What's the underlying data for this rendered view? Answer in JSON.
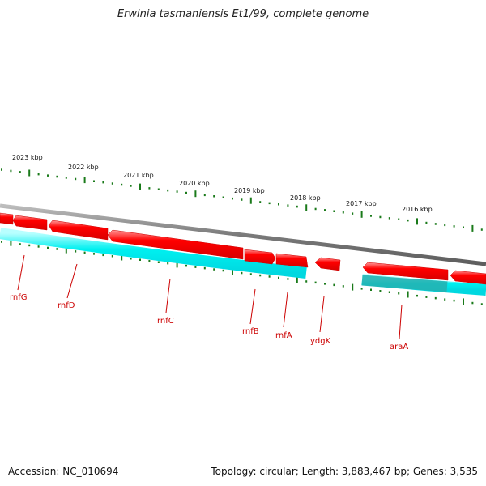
{
  "title": "Erwinia tasmaniensis Et1/99, complete genome",
  "accession": "Accession: NC_010694",
  "topology": "Topology: circular; Length: 3,883,467 bp; Genes: 3,535",
  "colors": {
    "forward_gene": "#ff0000",
    "reverse_gene": "#00e5ee",
    "backbone": "#808080",
    "ticks": "#1a7a1a",
    "label": "#cc0000"
  },
  "kbp_labels": [
    "2023 kbp",
    "2022 kbp",
    "2021 kbp",
    "2020 kbp",
    "2019 kbp",
    "2018 kbp",
    "2017 kbp",
    "2016 kbp"
  ],
  "genes": [
    "rnfG",
    "rnfD",
    "rnfC",
    "rnfB",
    "rnfA",
    "ydgK",
    "araA"
  ]
}
